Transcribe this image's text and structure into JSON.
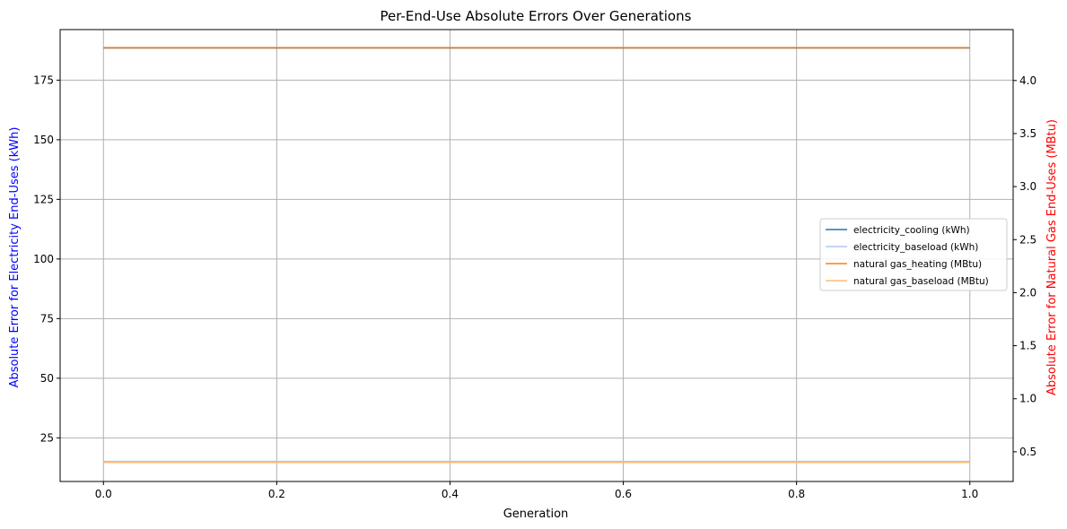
{
  "chart_data": {
    "type": "line",
    "title": "Per-End-Use Absolute Errors Over Generations",
    "xlabel": "Generation",
    "ylabel_left": "Absolute Error for Electricity End-Uses (kWh)",
    "ylabel_right": "Absolute Error for Natural Gas End-Uses (MBtu)",
    "ylabel_left_color": "#0000ff",
    "ylabel_right_color": "#ff0000",
    "x": [
      0,
      1
    ],
    "xlim": [
      -0.05,
      1.05
    ],
    "xticks": [
      0.0,
      0.2,
      0.4,
      0.6,
      0.8,
      1.0
    ],
    "xtick_labels": [
      "0.0",
      "0.2",
      "0.4",
      "0.6",
      "0.8",
      "1.0"
    ],
    "ylim_left": [
      6.7,
      196.2
    ],
    "yticks_left": [
      25,
      50,
      75,
      100,
      125,
      150,
      175
    ],
    "ytick_labels_left": [
      "25",
      "50",
      "75",
      "100",
      "125",
      "150",
      "175"
    ],
    "ylim_right": [
      0.22,
      4.48
    ],
    "yticks_right": [
      0.5,
      1.0,
      1.5,
      2.0,
      2.5,
      3.0,
      3.5,
      4.0
    ],
    "ytick_labels_right": [
      "0.5",
      "1.0",
      "1.5",
      "2.0",
      "2.5",
      "3.0",
      "3.5",
      "4.0"
    ],
    "grid": true,
    "legend_position": "center-right",
    "series": [
      {
        "name": "electricity_cooling (kWh)",
        "axis": "left",
        "values": [
          188.5,
          188.5
        ],
        "color": "#1f77b4"
      },
      {
        "name": "electricity_baseload (kWh)",
        "axis": "left",
        "values": [
          15.1,
          15.1
        ],
        "color": "#aec7e8"
      },
      {
        "name": "natural gas_heating (MBtu)",
        "axis": "right",
        "values": [
          4.31,
          4.31
        ],
        "color": "#ff7f0e"
      },
      {
        "name": "natural gas_baseload (MBtu)",
        "axis": "right",
        "values": [
          0.4,
          0.4
        ],
        "color": "#ffbb78"
      }
    ]
  }
}
